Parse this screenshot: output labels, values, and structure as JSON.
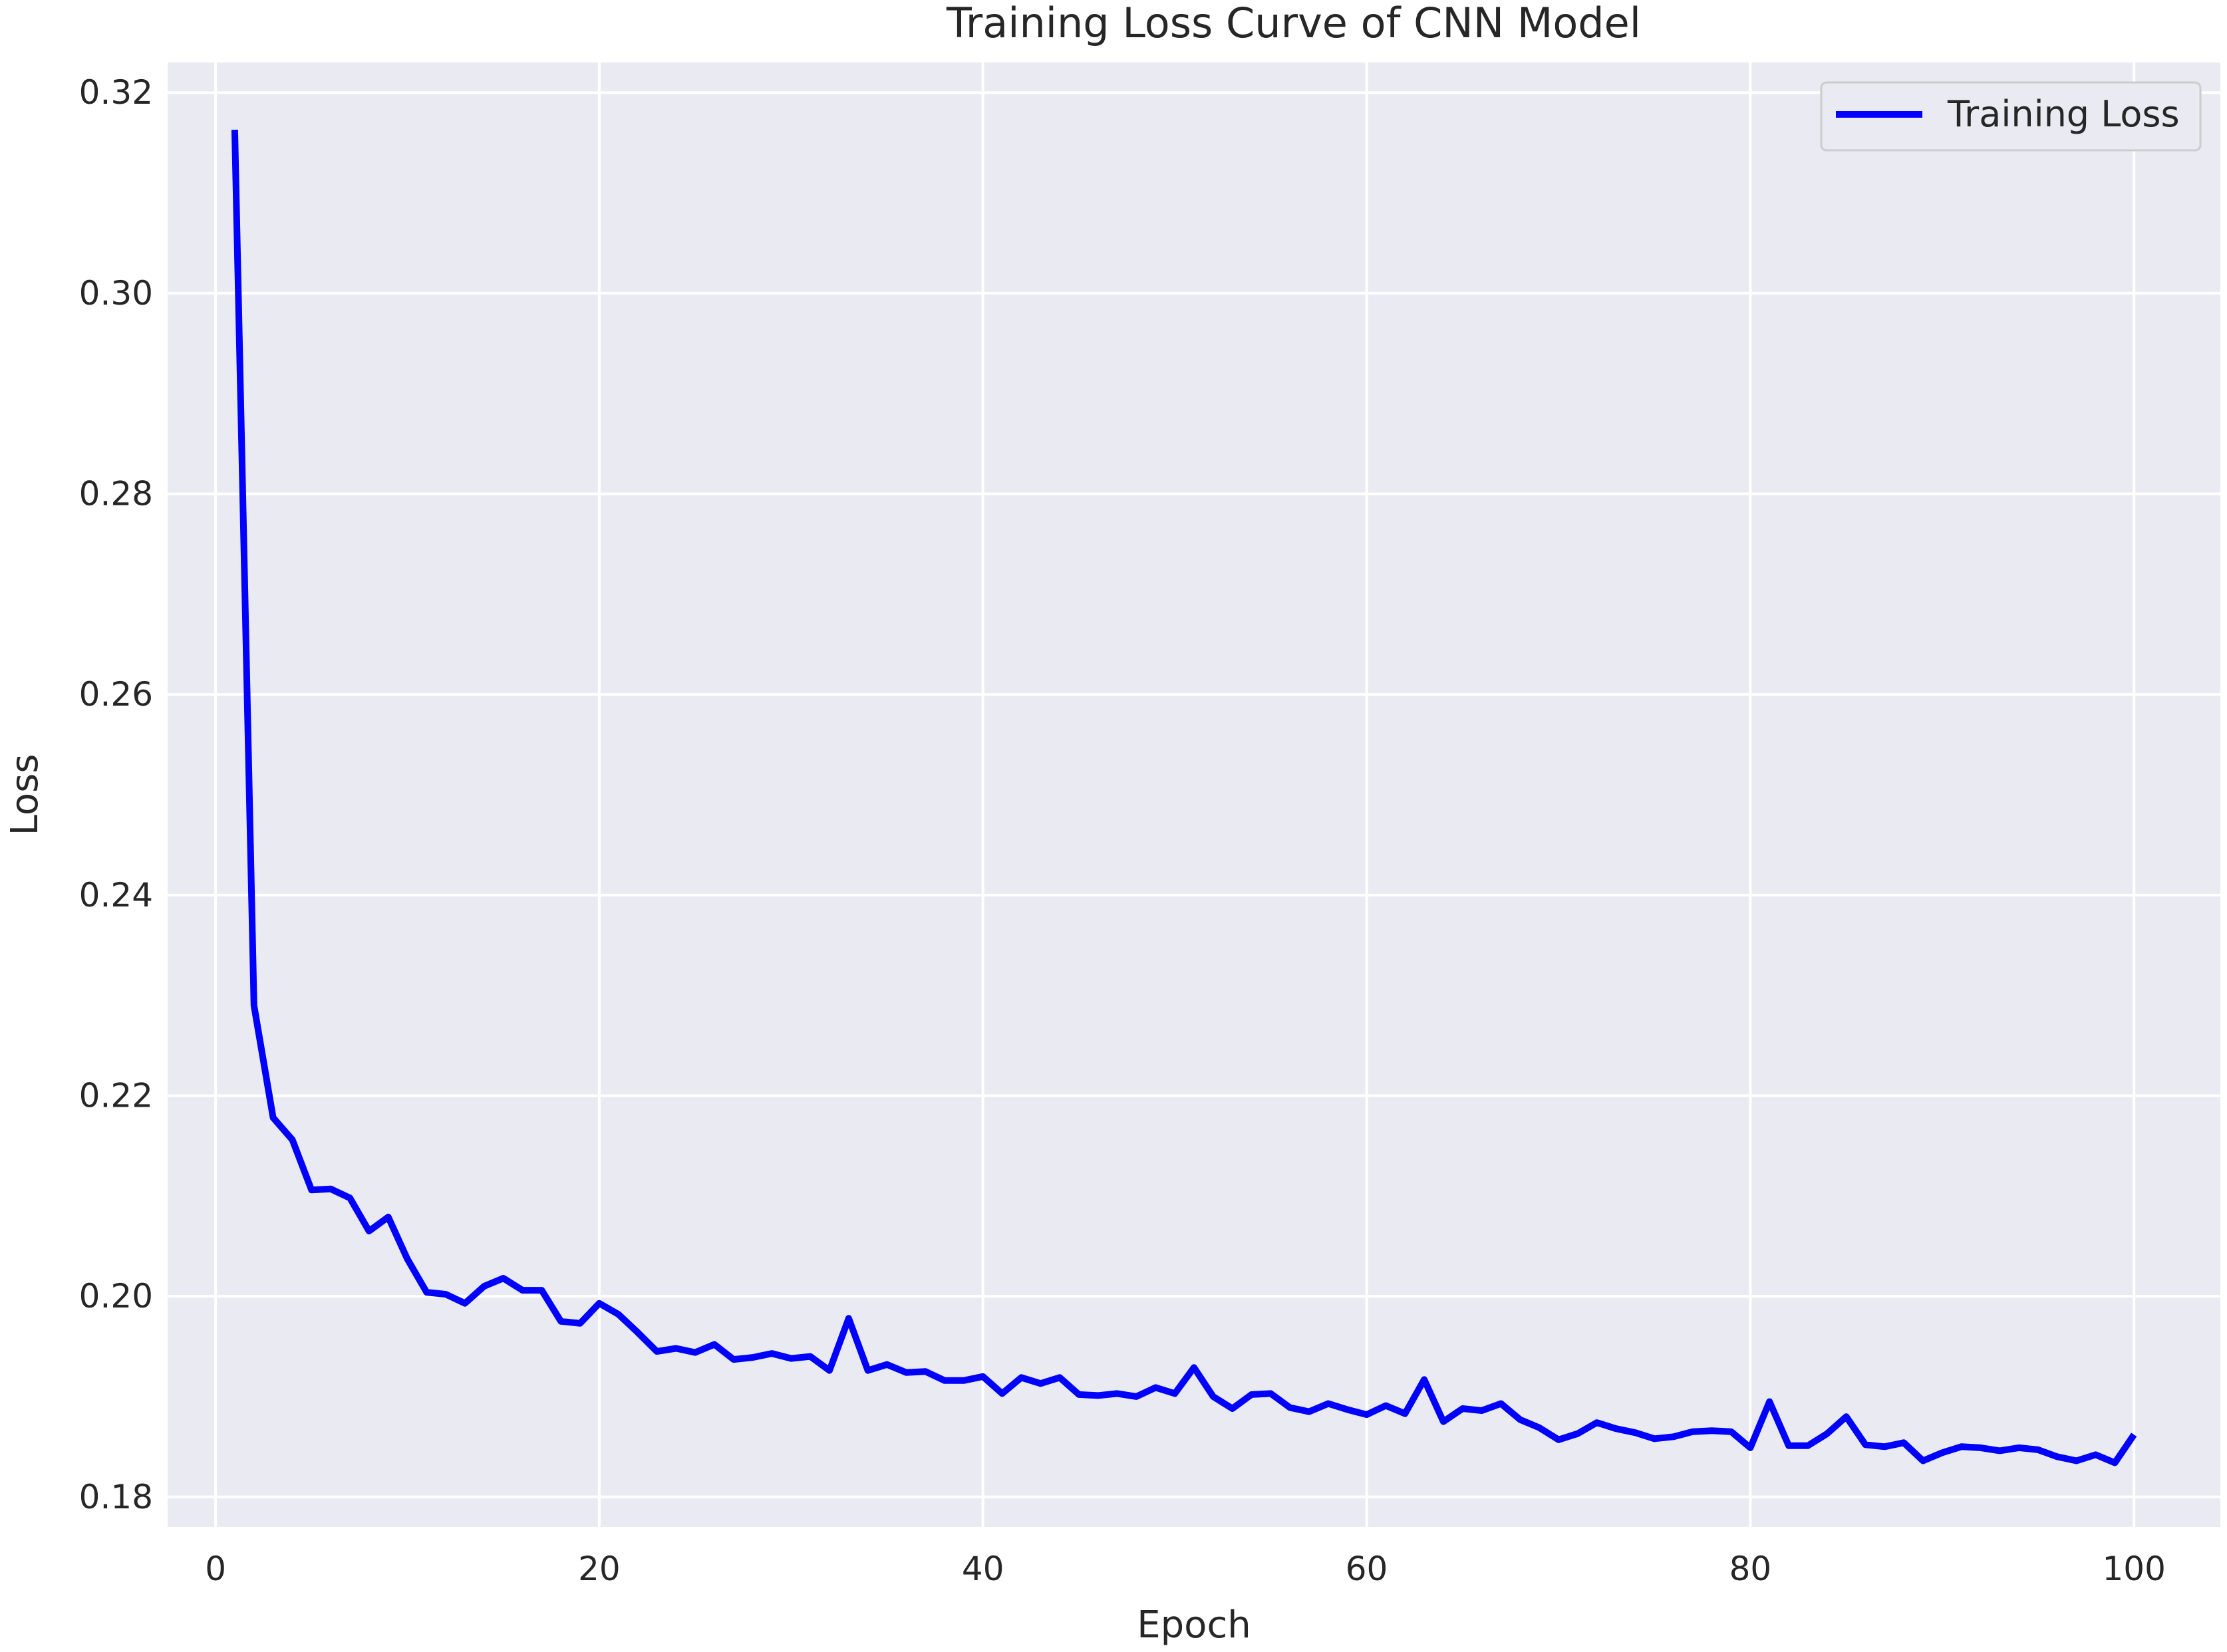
{
  "chart_data": {
    "type": "line",
    "title": "Training Loss Curve of CNN Model",
    "xlabel": "Epoch",
    "ylabel": "Loss",
    "xlim": [
      -2.5,
      104.5
    ],
    "ylim": [
      0.177,
      0.323
    ],
    "xticks": [
      0,
      20,
      40,
      60,
      80,
      100
    ],
    "yticks": [
      0.18,
      0.2,
      0.22,
      0.24,
      0.26,
      0.28,
      0.3,
      0.32
    ],
    "grid": true,
    "legend_position": "top-right",
    "background_color": "#eaeaf2",
    "grid_color": "#ffffff",
    "series": [
      {
        "name": "Training Loss",
        "color": "#0000ff",
        "x": [
          1,
          2,
          3,
          4,
          5,
          6,
          7,
          8,
          9,
          10,
          11,
          12,
          13,
          14,
          15,
          16,
          17,
          18,
          19,
          20,
          21,
          22,
          23,
          24,
          25,
          26,
          27,
          28,
          29,
          30,
          31,
          32,
          33,
          34,
          35,
          36,
          37,
          38,
          39,
          40,
          41,
          42,
          43,
          44,
          45,
          46,
          47,
          48,
          49,
          50,
          51,
          52,
          53,
          54,
          55,
          56,
          57,
          58,
          59,
          60,
          61,
          62,
          63,
          64,
          65,
          66,
          67,
          68,
          69,
          70,
          71,
          72,
          73,
          74,
          75,
          76,
          77,
          78,
          79,
          80,
          81,
          82,
          83,
          84,
          85,
          86,
          87,
          88,
          89,
          90,
          91,
          92,
          93,
          94,
          95,
          96,
          97,
          98,
          99,
          100
        ],
        "values": [
          0.3163,
          0.229,
          0.2178,
          0.2156,
          0.2106,
          0.2107,
          0.2098,
          0.2065,
          0.2079,
          0.2037,
          0.2004,
          0.2002,
          0.1993,
          0.201,
          0.2018,
          0.2006,
          0.2006,
          0.1975,
          0.1973,
          0.1993,
          0.1982,
          0.1964,
          0.1945,
          0.1948,
          0.1944,
          0.1952,
          0.1937,
          0.1939,
          0.1943,
          0.1938,
          0.194,
          0.1926,
          0.1978,
          0.1926,
          0.1932,
          0.1924,
          0.1925,
          0.1916,
          0.1916,
          0.192,
          0.1903,
          0.1919,
          0.1913,
          0.1919,
          0.1902,
          0.1901,
          0.1903,
          0.19,
          0.1909,
          0.1903,
          0.1929,
          0.19,
          0.1888,
          0.1902,
          0.1903,
          0.1889,
          0.1885,
          0.1893,
          0.1887,
          0.1882,
          0.1891,
          0.1883,
          0.1917,
          0.1875,
          0.1888,
          0.1886,
          0.1893,
          0.1877,
          0.1869,
          0.1857,
          0.1863,
          0.1874,
          0.1868,
          0.1864,
          0.1858,
          0.186,
          0.1865,
          0.1866,
          0.1865,
          0.1849,
          0.1895,
          0.1851,
          0.1851,
          0.1863,
          0.188,
          0.1852,
          0.185,
          0.1854,
          0.1836,
          0.1844,
          0.185,
          0.1849,
          0.1846,
          0.1849,
          0.1847,
          0.184,
          0.1836,
          0.1842,
          0.1834,
          0.1862
        ]
      }
    ]
  }
}
